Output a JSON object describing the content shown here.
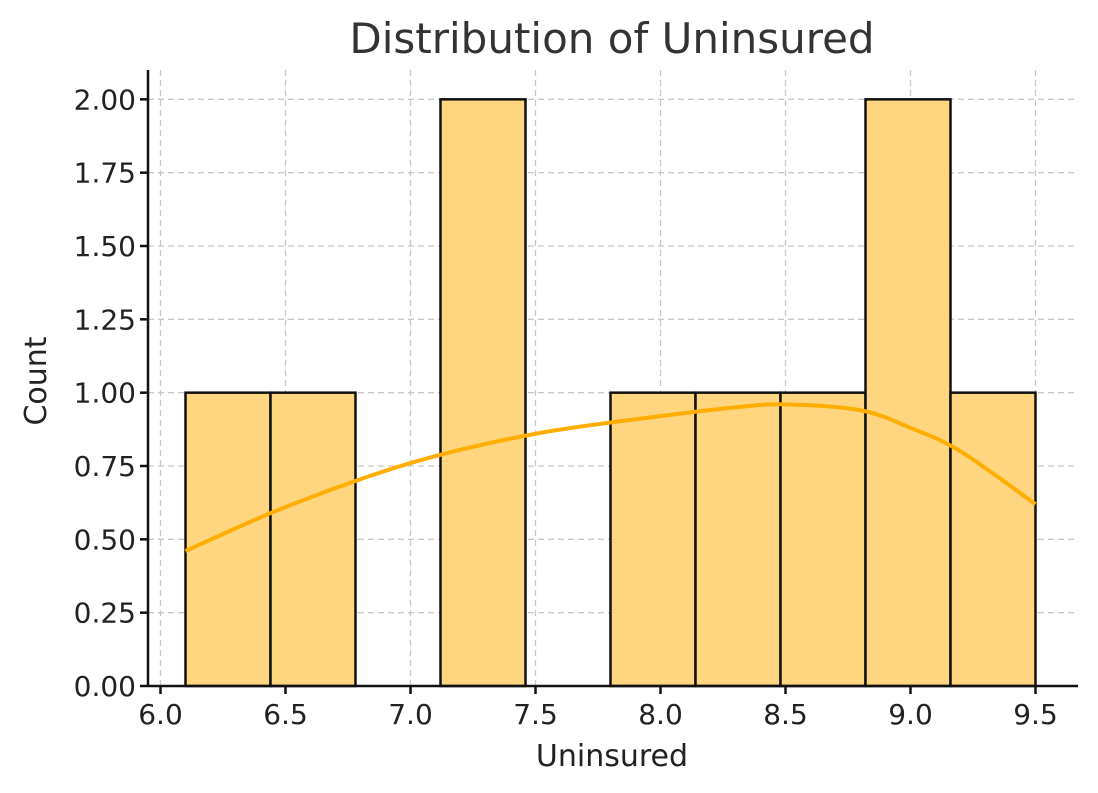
{
  "chart_data": {
    "type": "bar",
    "title": "Distribution of Uninsured",
    "xlabel": "Uninsured",
    "ylabel": "Count",
    "xlim": [
      5.95,
      9.67
    ],
    "ylim": [
      0,
      2.1
    ],
    "grid": true,
    "bar_color": "#ffd580",
    "edge_color": "#111111",
    "kde_color": "#ffae00",
    "x_ticks": [
      "6.0",
      "6.5",
      "7.0",
      "7.5",
      "8.0",
      "8.5",
      "9.0",
      "9.5"
    ],
    "y_ticks": [
      "0.00",
      "0.25",
      "0.50",
      "0.75",
      "1.00",
      "1.25",
      "1.50",
      "1.75",
      "2.00"
    ],
    "bins": [
      {
        "x0": 6.1,
        "x1": 6.44,
        "count": 1
      },
      {
        "x0": 6.44,
        "x1": 6.78,
        "count": 1
      },
      {
        "x0": 6.78,
        "x1": 7.12,
        "count": 0
      },
      {
        "x0": 7.12,
        "x1": 7.46,
        "count": 2
      },
      {
        "x0": 7.46,
        "x1": 7.8,
        "count": 0
      },
      {
        "x0": 7.8,
        "x1": 8.14,
        "count": 1
      },
      {
        "x0": 8.14,
        "x1": 8.48,
        "count": 1
      },
      {
        "x0": 8.48,
        "x1": 8.82,
        "count": 1
      },
      {
        "x0": 8.82,
        "x1": 9.16,
        "count": 2
      },
      {
        "x0": 9.16,
        "x1": 9.5,
        "count": 1
      }
    ],
    "kde": {
      "x": [
        6.1,
        6.5,
        7.0,
        7.5,
        8.0,
        8.3,
        8.5,
        8.8,
        9.0,
        9.2,
        9.5
      ],
      "y": [
        0.46,
        0.61,
        0.76,
        0.86,
        0.92,
        0.95,
        0.96,
        0.94,
        0.88,
        0.8,
        0.62
      ]
    }
  }
}
